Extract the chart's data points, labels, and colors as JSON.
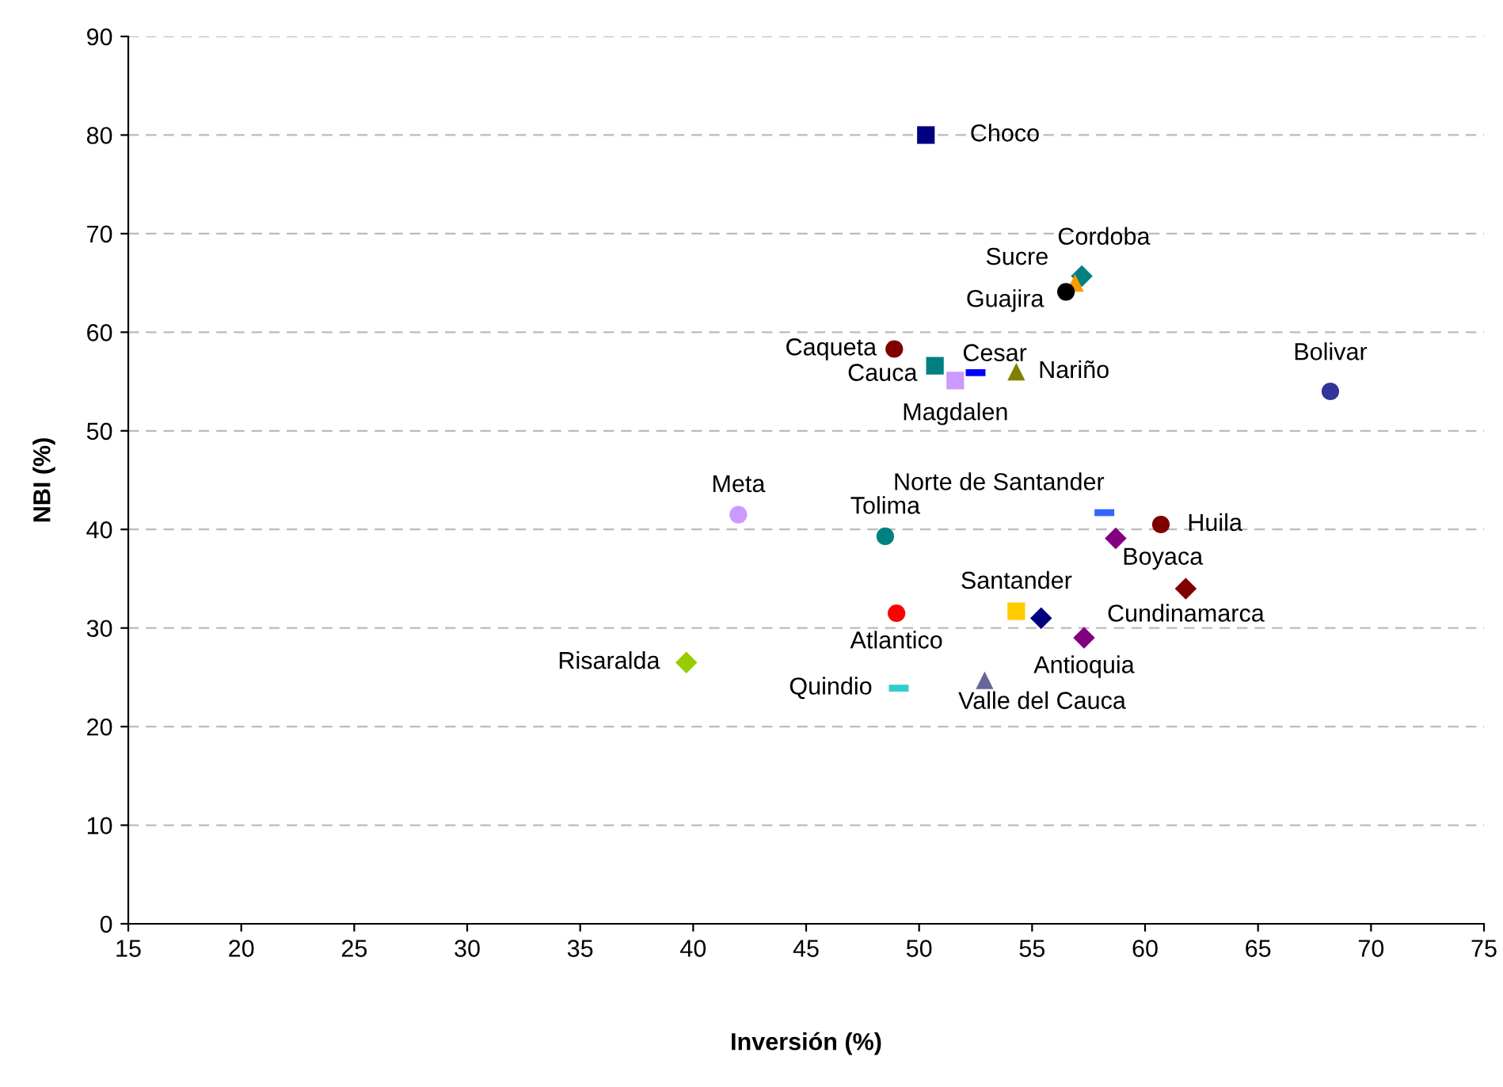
{
  "chart_data": {
    "type": "scatter",
    "xlabel": "Inversión (%)",
    "ylabel": "NBI (%)",
    "xlim": [
      15,
      75
    ],
    "xticks": [
      15,
      20,
      25,
      30,
      35,
      40,
      45,
      50,
      55,
      60,
      65,
      70,
      75
    ],
    "ylim": [
      0,
      90
    ],
    "yticks": [
      0,
      10,
      20,
      30,
      40,
      50,
      60,
      70,
      80,
      90
    ],
    "grid": "y",
    "series": [
      {
        "name": "Choco",
        "color": "#000080",
        "marker": "square",
        "x": [
          50.3
        ],
        "values": [
          80.0
        ]
      },
      {
        "name": "Cordoba",
        "color": "#008080",
        "marker": "diamond",
        "x": [
          57.2
        ],
        "values": [
          65.7
        ]
      },
      {
        "name": "Sucre",
        "color": "#ff9900",
        "marker": "triangle",
        "x": [
          56.9
        ],
        "values": [
          65.0
        ]
      },
      {
        "name": "Guajira",
        "color": "#000000",
        "marker": "circle",
        "x": [
          56.5
        ],
        "values": [
          64.1
        ]
      },
      {
        "name": "Caqueta",
        "color": "#800000",
        "marker": "circle",
        "x": [
          48.9
        ],
        "values": [
          58.3
        ]
      },
      {
        "name": "Cauca",
        "color": "#008080",
        "marker": "square",
        "x": [
          50.7
        ],
        "values": [
          56.6
        ]
      },
      {
        "name": "Cesar",
        "color": "#0000ff",
        "x": [
          52.5
        ],
        "values": [
          55.9
        ]
      },
      {
        "name": "Magdalen",
        "color": "#cc99ff",
        "marker": "square",
        "x": [
          51.6
        ],
        "values": [
          55.1
        ]
      },
      {
        "name": "Nariño",
        "color": "#808000",
        "marker": "triangle",
        "x": [
          54.3
        ],
        "values": [
          56.0
        ]
      },
      {
        "name": "Bolivar",
        "color": "#333399",
        "marker": "circle",
        "x": [
          68.2
        ],
        "values": [
          54.0
        ]
      },
      {
        "name": "Meta",
        "color": "#cc99ff",
        "marker": "circle",
        "x": [
          42.0
        ],
        "values": [
          41.5
        ]
      },
      {
        "name": "Tolima",
        "color": "#008080",
        "marker": "circle",
        "x": [
          48.5
        ],
        "values": [
          39.3
        ]
      },
      {
        "name": "Norte de Santander",
        "color": "#3366ff",
        "x": [
          58.2
        ],
        "values": [
          41.7
        ]
      },
      {
        "name": "Huila",
        "color": "#800000",
        "marker": "circle",
        "x": [
          60.7
        ],
        "values": [
          40.5
        ]
      },
      {
        "name": "Boyaca",
        "color": "#800080",
        "marker": "diamond",
        "x": [
          58.7
        ],
        "values": [
          39.1
        ]
      },
      {
        "name": "Cundinamarca",
        "color": "#800000",
        "marker": "diamond",
        "x": [
          61.8
        ],
        "values": [
          34.0
        ]
      },
      {
        "name": "Santander",
        "color": "#ffcc00",
        "marker": "square",
        "x": [
          54.3
        ],
        "values": [
          31.7
        ]
      },
      {
        "color": "#000080",
        "marker": "diamond",
        "x": [
          55.4
        ],
        "values": [
          31.0
        ]
      },
      {
        "name": "Antioquia",
        "color": "#800080",
        "marker": "diamond",
        "x": [
          57.3
        ],
        "values": [
          29.0
        ]
      },
      {
        "name": "Atlantico",
        "color": "#ff0000",
        "marker": "circle",
        "x": [
          49.0
        ],
        "values": [
          31.5
        ]
      },
      {
        "name": "Risaralda",
        "color": "#99cc00",
        "marker": "diamond",
        "x": [
          39.7
        ],
        "values": [
          26.5
        ]
      },
      {
        "name": "Quindio",
        "color": "#33cccc",
        "x": [
          49.1
        ],
        "values": [
          23.9
        ]
      },
      {
        "name": "Valle del Cauca",
        "color": "#666699",
        "marker": "triangle",
        "x": [
          52.9
        ],
        "values": [
          24.7
        ]
      }
    ]
  }
}
